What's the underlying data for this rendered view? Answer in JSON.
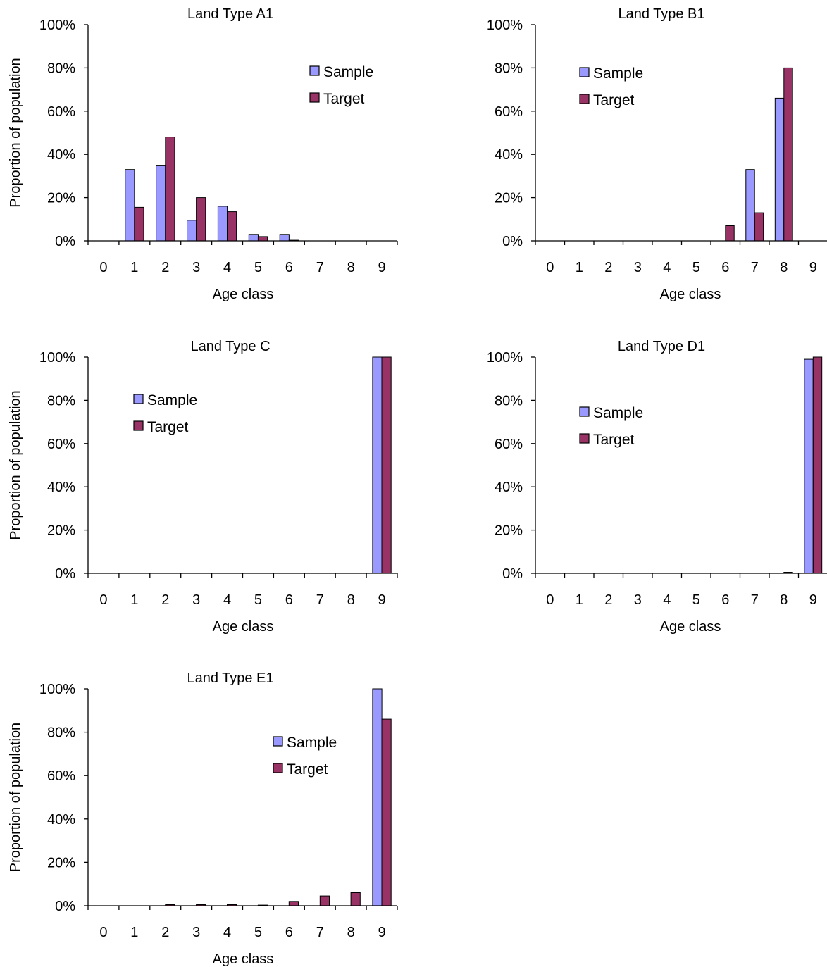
{
  "styles": {
    "sample_color": "#9999ff",
    "target_color": "#993366",
    "axis_color": "#000000"
  },
  "chart_data": [
    {
      "type": "bar",
      "title": "Land Type A1",
      "xlabel": "Age class",
      "ylabel": "Proportion of population",
      "categories": [
        "0",
        "1",
        "2",
        "3",
        "4",
        "5",
        "6",
        "7",
        "8",
        "9"
      ],
      "ylim": [
        0,
        100
      ],
      "yticks": [
        "0%",
        "20%",
        "40%",
        "60%",
        "80%",
        "100%"
      ],
      "legend": "top-right",
      "series": [
        {
          "name": "Sample",
          "values": [
            0,
            33,
            35,
            9.5,
            16,
            3,
            3,
            0,
            0,
            0
          ]
        },
        {
          "name": "Target",
          "values": [
            0,
            15.5,
            48,
            20,
            13.5,
            2,
            0.3,
            0,
            0,
            0
          ]
        }
      ]
    },
    {
      "type": "bar",
      "title": "Land Type B1",
      "xlabel": "Age class",
      "ylabel": "",
      "categories": [
        "0",
        "1",
        "2",
        "3",
        "4",
        "5",
        "6",
        "7",
        "8",
        "9"
      ],
      "ylim": [
        0,
        100
      ],
      "yticks": [
        "0%",
        "20%",
        "40%",
        "60%",
        "80%",
        "100%"
      ],
      "legend": "top-left",
      "series": [
        {
          "name": "Sample",
          "values": [
            0,
            0,
            0,
            0,
            0,
            0,
            0,
            33,
            66,
            0
          ]
        },
        {
          "name": "Target",
          "values": [
            0,
            0,
            0,
            0,
            0,
            0,
            7,
            13,
            80,
            0
          ]
        }
      ]
    },
    {
      "type": "bar",
      "title": "Land Type C",
      "xlabel": "Age class",
      "ylabel": "Proportion of population",
      "categories": [
        "0",
        "1",
        "2",
        "3",
        "4",
        "5",
        "6",
        "7",
        "8",
        "9"
      ],
      "ylim": [
        0,
        100
      ],
      "yticks": [
        "0%",
        "20%",
        "40%",
        "60%",
        "80%",
        "100%"
      ],
      "legend": "top-left",
      "series": [
        {
          "name": "Sample",
          "values": [
            0,
            0,
            0,
            0,
            0,
            0,
            0,
            0,
            0,
            100
          ]
        },
        {
          "name": "Target",
          "values": [
            0,
            0,
            0,
            0,
            0,
            0,
            0,
            0,
            0,
            100
          ]
        }
      ]
    },
    {
      "type": "bar",
      "title": "Land Type D1",
      "xlabel": "Age class",
      "ylabel": "",
      "categories": [
        "0",
        "1",
        "2",
        "3",
        "4",
        "5",
        "6",
        "7",
        "8",
        "9"
      ],
      "ylim": [
        0,
        100
      ],
      "yticks": [
        "0%",
        "20%",
        "40%",
        "60%",
        "80%",
        "100%"
      ],
      "legend": "top-left",
      "series": [
        {
          "name": "Sample",
          "values": [
            0,
            0,
            0,
            0,
            0,
            0,
            0,
            0,
            0,
            99
          ]
        },
        {
          "name": "Target",
          "values": [
            0,
            0,
            0,
            0,
            0,
            0,
            0,
            0,
            0.5,
            100
          ]
        }
      ]
    },
    {
      "type": "bar",
      "title": "Land Type E1",
      "xlabel": "Age class",
      "ylabel": "Proportion of population",
      "categories": [
        "0",
        "1",
        "2",
        "3",
        "4",
        "5",
        "6",
        "7",
        "8",
        "9"
      ],
      "ylim": [
        0,
        100
      ],
      "yticks": [
        "0%",
        "20%",
        "40%",
        "60%",
        "80%",
        "100%"
      ],
      "legend": "top-right",
      "series": [
        {
          "name": "Sample",
          "values": [
            0,
            0,
            0,
            0,
            0,
            0,
            0,
            0,
            0,
            100
          ]
        },
        {
          "name": "Target",
          "values": [
            0,
            0,
            0.5,
            0.5,
            0.5,
            0.3,
            2,
            4.5,
            6,
            86
          ]
        }
      ]
    }
  ]
}
